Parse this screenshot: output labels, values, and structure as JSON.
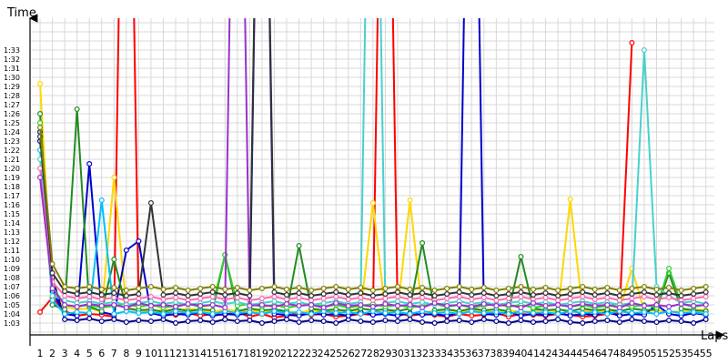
{
  "chart_data": {
    "type": "line",
    "xlabel": "Laps",
    "ylabel": "Time",
    "xlim": [
      1,
      55
    ],
    "ylim_seconds": [
      182,
      215
    ],
    "y_ticks": [
      "1:03",
      "1:04",
      "1:05",
      "1:06",
      "1:07",
      "1:08",
      "1:09",
      "1:10",
      "1:11",
      "1:12",
      "1:13",
      "1:14",
      "1:15",
      "1:16",
      "1:17",
      "1:18",
      "1:19",
      "1:20",
      "1:21",
      "1:22",
      "1:23",
      "1:24",
      "1:25",
      "1:26",
      "1:27",
      "1:28",
      "1:29",
      "1:30",
      "1:31",
      "1:32",
      "1:33"
    ],
    "x_ticks": [
      "1",
      "2",
      "3",
      "4",
      "5",
      "6",
      "7",
      "8",
      "9",
      "10",
      "11",
      "12",
      "13",
      "14",
      "15",
      "16",
      "17",
      "18",
      "19",
      "20",
      "21",
      "22",
      "23",
      "24",
      "25",
      "26",
      "27",
      "28",
      "29",
      "30",
      "31",
      "32",
      "33",
      "34",
      "35",
      "36",
      "37",
      "38",
      "39",
      "40",
      "41",
      "42",
      "43",
      "44",
      "45",
      "46",
      "47",
      "48",
      "49",
      "50",
      "51",
      "52",
      "53",
      "54",
      "55"
    ],
    "grid": true,
    "legend": "none",
    "series": [
      {
        "color": "#ff0000",
        "values": [
          64.2,
          65.8,
          64.3,
          63.8,
          64.0,
          63.9,
          63.7,
          150,
          64.5,
          64.2,
          64.0,
          63.9,
          64.1,
          63.8,
          64.0,
          63.9,
          64.2,
          63.7,
          64.0,
          63.6,
          63.8,
          64.1,
          63.9,
          64.0,
          63.7,
          63.8,
          64.0,
          63.9,
          150,
          64.1,
          63.8,
          64.0,
          63.9,
          63.7,
          64.0,
          63.8,
          63.9,
          64.1,
          63.7,
          64.0,
          63.9,
          63.8,
          64.0,
          63.9,
          63.7,
          63.8,
          64.0,
          64.1,
          93.8
        ]
      },
      {
        "color": "#ffd700",
        "values": [
          89.3,
          66.0,
          64.8,
          64.5,
          64.6,
          64.3,
          79.0,
          64.7,
          64.4,
          64.2,
          64.5,
          64.3,
          64.6,
          64.4,
          64.2,
          64.5,
          64.3,
          64.4,
          64.2,
          64.5,
          64.3,
          64.1,
          64.4,
          64.2,
          64.3,
          64.5,
          64.2,
          76.2,
          64.3,
          64.4,
          76.5,
          64.2,
          64.3,
          64.5,
          64.2,
          64.4,
          64.3,
          64.1,
          64.4,
          64.2,
          64.3,
          64.5,
          64.2,
          76.6,
          64.3,
          64.4,
          64.2,
          64.5,
          69.0,
          64.3,
          64.4,
          64.2,
          64.3,
          64.5,
          64.4
        ]
      },
      {
        "color": "#00008b",
        "values": [
          83.0,
          68.0,
          63.4,
          63.3,
          63.5,
          63.2,
          63.4,
          63.1,
          63.3,
          63.2,
          63.4,
          63.0,
          63.2,
          63.3,
          63.1,
          63.4,
          63.2,
          63.3,
          63.0,
          63.2,
          63.4,
          63.1,
          63.3,
          63.2,
          63.0,
          63.4,
          63.2,
          63.1,
          63.3,
          63.2,
          63.4,
          63.1,
          63.0,
          63.2,
          63.3,
          63.1,
          63.4,
          63.2,
          63.0,
          63.3,
          63.1,
          63.2,
          63.4,
          63.1,
          63.0,
          63.2,
          63.3,
          63.1,
          63.4,
          63.2,
          63.1,
          63.3,
          63.2,
          63.0,
          63.4
        ]
      },
      {
        "color": "#0000cd",
        "values": [
          84.0,
          66.5,
          64.0,
          63.8,
          80.5,
          64.2,
          63.9,
          71.0,
          72.0,
          64.1,
          63.8,
          64.0,
          63.9,
          64.2,
          63.8,
          64.0,
          63.9,
          64.1,
          150,
          64.0,
          63.9,
          63.8,
          64.1,
          63.9,
          64.0,
          63.8,
          64.2,
          63.9,
          64.0,
          63.8,
          64.1,
          63.9,
          64.0,
          63.8,
          64.1,
          150,
          64.0,
          63.9,
          64.2,
          63.8,
          64.0,
          63.9,
          64.1,
          63.8,
          64.0,
          63.9,
          64.2,
          63.8,
          64.0,
          63.9,
          65.0,
          64.0,
          63.8,
          64.1,
          63.9
        ]
      },
      {
        "color": "#228b22",
        "values": [
          86.0,
          65.0,
          64.5,
          86.5,
          64.8,
          64.3,
          70.0,
          64.6,
          64.4,
          64.5,
          64.2,
          64.6,
          64.3,
          64.5,
          64.4,
          70.5,
          64.3,
          64.6,
          64.4,
          64.5,
          64.3,
          71.5,
          64.6,
          64.4,
          64.5,
          64.3,
          64.6,
          64.4,
          64.5,
          64.3,
          64.6,
          71.8,
          64.4,
          64.5,
          64.3,
          64.6,
          64.4,
          64.5,
          64.3,
          70.3,
          64.6,
          64.4,
          64.5,
          64.3,
          64.6,
          64.4,
          64.5,
          64.3,
          64.6,
          64.4,
          64.5,
          68.5,
          64.6,
          64.4,
          64.3
        ]
      },
      {
        "color": "#32cd32",
        "values": [
          85.0,
          67.0,
          65.0,
          64.8,
          65.0,
          64.7,
          64.9,
          65.1,
          64.8,
          65.0,
          64.7,
          64.9,
          65.1,
          64.8,
          65.0,
          70.5,
          64.9,
          65.1,
          64.8,
          65.0,
          64.7,
          64.9,
          65.1,
          64.8,
          65.0,
          64.7,
          64.9,
          65.1,
          64.8,
          65.0,
          64.7,
          64.9,
          65.1,
          64.8,
          65.0,
          64.7,
          64.9,
          65.1,
          64.8,
          65.0,
          64.7,
          64.9,
          65.1,
          64.8,
          65.0,
          64.7,
          64.9,
          65.1,
          64.8,
          65.0,
          64.7,
          69.0,
          65.1,
          64.8,
          65.0
        ]
      },
      {
        "color": "#00bfff",
        "values": [
          82.0,
          65.5,
          64.0,
          64.2,
          64.1,
          76.5,
          64.0,
          64.3,
          64.1,
          64.2,
          64.0,
          64.3,
          64.1,
          64.2,
          64.0,
          64.3,
          64.1,
          64.2,
          64.0,
          64.3,
          64.1,
          64.2,
          64.0,
          64.3,
          64.1,
          64.2,
          64.0,
          64.3,
          64.1,
          64.2,
          64.0,
          64.3,
          64.1,
          64.2,
          64.0,
          64.3,
          64.1,
          64.2,
          64.0,
          64.3,
          64.1,
          64.2,
          64.0,
          64.3,
          64.1,
          64.2,
          64.0,
          64.3,
          64.1,
          64.2,
          64.0,
          64.3,
          64.1,
          64.2,
          64.0
        ]
      },
      {
        "color": "#48d1cc",
        "values": [
          81.0,
          66.0,
          65.5,
          65.2,
          65.4,
          65.1,
          65.3,
          65.0,
          65.2,
          65.4,
          65.1,
          65.3,
          65.0,
          65.2,
          65.4,
          65.1,
          65.3,
          65.0,
          65.2,
          65.4,
          65.1,
          65.3,
          65.0,
          65.2,
          65.4,
          65.1,
          65.3,
          150,
          65.2,
          65.4,
          65.1,
          65.3,
          65.0,
          65.2,
          65.4,
          65.1,
          65.3,
          65.0,
          65.2,
          65.4,
          65.1,
          65.3,
          65.0,
          65.2,
          65.4,
          65.1,
          65.3,
          65.0,
          65.2,
          93.0,
          67.0,
          66.0,
          65.2,
          65.4,
          65.1
        ]
      },
      {
        "color": "#ff69b4",
        "values": [
          80.0,
          67.5,
          66.0,
          65.7,
          65.9,
          65.6,
          65.8,
          65.5,
          65.7,
          65.9,
          65.6,
          65.8,
          65.5,
          65.7,
          65.9,
          65.6,
          65.8,
          65.5,
          65.7,
          65.9,
          65.6,
          65.8,
          65.5,
          65.7,
          65.9,
          65.6,
          65.8,
          65.5,
          65.7,
          65.9,
          65.6,
          65.8,
          65.5,
          65.7,
          65.9,
          65.6,
          65.8,
          65.5,
          65.7,
          65.9,
          65.6,
          65.8,
          65.5,
          65.7,
          65.9,
          65.6,
          65.8,
          65.5,
          65.7,
          65.9,
          65.6,
          65.8,
          65.5,
          65.7,
          65.9
        ]
      },
      {
        "color": "#9932cc",
        "values": [
          79.0,
          66.8,
          65.0,
          64.8,
          65.1,
          64.9,
          65.0,
          64.7,
          65.2,
          64.9,
          65.0,
          64.8,
          65.1,
          64.9,
          65.0,
          64.7,
          150,
          64.9,
          65.0,
          64.8,
          65.1,
          64.9,
          65.0,
          64.7,
          65.2,
          64.9,
          65.0,
          64.8,
          65.1,
          64.9,
          65.0,
          64.7,
          65.2,
          64.9,
          65.0,
          64.8,
          65.1,
          64.9,
          65.0,
          64.7,
          65.2,
          64.9,
          65.0,
          64.8,
          65.1,
          64.9,
          65.0,
          64.7,
          65.2,
          64.9,
          65.0,
          64.8,
          65.1,
          64.9,
          65.0
        ]
      },
      {
        "color": "#333333",
        "values": [
          83.5,
          68.5,
          66.5,
          66.2,
          66.4,
          66.1,
          66.3,
          66.0,
          66.2,
          76.2,
          66.1,
          66.3,
          66.0,
          66.2,
          66.4,
          66.1,
          66.3,
          66.0,
          150,
          66.4,
          66.1,
          66.3,
          66.0,
          66.2,
          66.4,
          66.1,
          66.3,
          66.0,
          66.2,
          66.4,
          66.1,
          66.3,
          66.0,
          66.2,
          66.4,
          66.1,
          66.3,
          66.0,
          66.2,
          66.4,
          66.1,
          66.3,
          66.0,
          66.2,
          66.4,
          66.1,
          66.3,
          66.0,
          66.2,
          66.4,
          66.1,
          66.3,
          66.0,
          66.2,
          66.4
        ]
      },
      {
        "color": "#808000",
        "values": [
          84.5,
          69.5,
          67.0,
          66.8,
          67.0,
          66.7,
          66.9,
          66.6,
          66.8,
          67.0,
          66.7,
          66.9,
          66.6,
          66.8,
          67.0,
          66.7,
          66.9,
          66.6,
          66.8,
          67.0,
          66.7,
          66.9,
          66.6,
          66.8,
          67.0,
          66.7,
          66.9,
          66.6,
          66.8,
          67.0,
          66.7,
          66.9,
          66.6,
          66.8,
          67.0,
          66.7,
          66.9,
          66.6,
          66.8,
          67.0,
          66.7,
          66.9,
          66.6,
          66.8,
          67.0,
          66.7,
          66.9,
          66.6,
          66.8,
          67.0,
          66.7,
          66.9,
          66.6,
          66.8,
          67.0
        ]
      }
    ]
  }
}
